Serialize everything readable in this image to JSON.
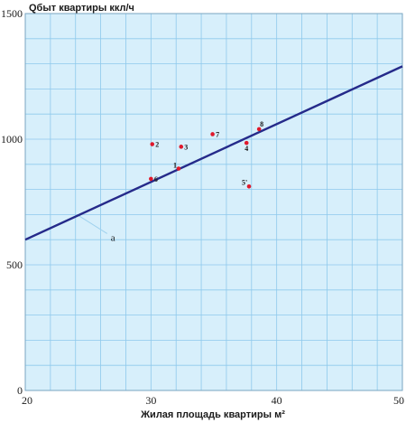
{
  "chart_data": {
    "type": "scatter",
    "ylabel": "Qбыт квартиры ккл/ч",
    "xlabel": "Жилая площадь квартиры м²",
    "xlim": [
      20,
      50
    ],
    "ylim": [
      0,
      1500
    ],
    "x_ticks": [
      "20",
      "30",
      "40",
      "50"
    ],
    "y_ticks": [
      "1500",
      "1000",
      "500",
      "0"
    ],
    "grid": true,
    "colors": {
      "background": "#d7effb",
      "grid": "#8ec9ec",
      "line": "#252a8a",
      "points": "#e0182b",
      "leader": "#9fd2ee"
    },
    "points": [
      {
        "label": "1",
        "x": 32.2,
        "y": 883
      },
      {
        "label": "2",
        "x": 30.1,
        "y": 980
      },
      {
        "label": "3",
        "x": 32.4,
        "y": 970
      },
      {
        "label": "4",
        "x": 37.6,
        "y": 985
      },
      {
        "label": "5'",
        "x": 37.8,
        "y": 812
      },
      {
        "label": "6",
        "x": 30.0,
        "y": 842
      },
      {
        "label": "7",
        "x": 34.9,
        "y": 1020
      },
      {
        "label": "8",
        "x": 38.6,
        "y": 1040
      }
    ],
    "trend_line": {
      "label": "а",
      "points": [
        {
          "x": 20,
          "y": 600
        },
        {
          "x": 50,
          "y": 1290
        }
      ],
      "annotation_at": {
        "x": 24.2,
        "y": 697
      },
      "annotation_text_at": {
        "x": 26.8,
        "y": 610
      }
    }
  }
}
